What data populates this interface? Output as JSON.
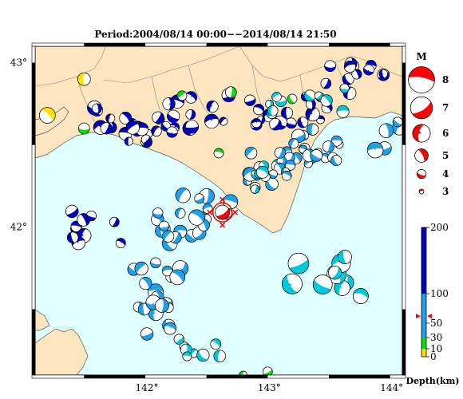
{
  "title": "Period:2004/08/14 00:00−−2014/08/14 21:50",
  "axes": {
    "lon_labels": [
      "142°",
      "143°",
      "144°"
    ],
    "lat_labels": [
      "43°",
      "42°"
    ],
    "lon_range": [
      141.1,
      144.1
    ],
    "lat_range": [
      41.1,
      43.1
    ]
  },
  "colors": {
    "sea": "#e0ffff",
    "land": "#fde5c0",
    "border": "#000000",
    "shallow": "#ffe000",
    "d10_30": "#00e000",
    "d30_100": "#00c8d8",
    "d_mid": "#20a0e8",
    "deep": "#0000c0",
    "main_shock": "#ff0000"
  },
  "magnitude_legend": {
    "title": "M",
    "items": [
      {
        "label": "8",
        "m": 8
      },
      {
        "label": "7",
        "m": 7
      },
      {
        "label": "6",
        "m": 6
      },
      {
        "label": "5",
        "m": 5
      },
      {
        "label": "4",
        "m": 4
      },
      {
        "label": "3",
        "m": 3
      }
    ]
  },
  "depth_legend": {
    "title": "Depth(km)",
    "ticks": [
      {
        "label": "200",
        "d": 200
      },
      {
        "label": "100",
        "d": 100
      },
      {
        "label": "50",
        "d": 50
      },
      {
        "label": "30",
        "d": 30
      },
      {
        "label": "10",
        "d": 10
      },
      {
        "label": "0",
        "d": 0
      }
    ],
    "marker_depth": 62
  },
  "main_event": {
    "lon": 142.63,
    "lat": 42.09,
    "m": 5.8,
    "depth": 62
  }
}
